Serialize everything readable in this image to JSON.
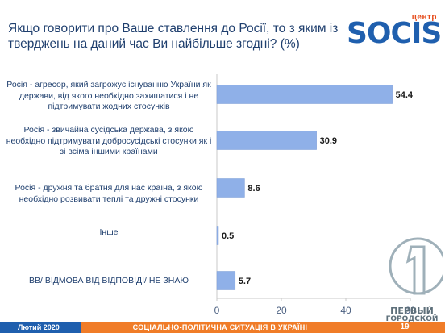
{
  "header": {
    "title": "Якщо говорити про Ваше ставлення до Росії, то з яким із тверджень на даний час Ви найбільше згодні? (%)"
  },
  "logo": {
    "small": "центр",
    "big": "SOCIS",
    "brand_color": "#1f5fae",
    "accent_color": "#e64a19"
  },
  "chart_data": {
    "type": "bar",
    "orientation": "horizontal",
    "categories": [
      "Росія - агресор, який загрожує існуванню України як держави, від якого необхідно захищатися і не підтримувати жодних стосунків",
      "Росія - звичайна сусідська держава, з якою необхідно підтримувати добросусідські стосунки як і зі всіма іншими країнами",
      "Росія - дружня та братня для нас країна, з якою необхідно розвивати теплі та дружні стосунки",
      "Інше",
      "ВВ/ ВІДМОВА ВІД ВІДПОВІДІ/ НЕ ЗНАЮ"
    ],
    "values": [
      54.4,
      30.9,
      8.6,
      0.5,
      5.7
    ],
    "value_labels": [
      "54.4",
      "30.9",
      "8.6",
      "0.5",
      "5.7"
    ],
    "xlim": [
      0,
      60
    ],
    "xticks": [
      "0",
      "20",
      "40",
      "60"
    ],
    "bar_color": "#8fb0e8",
    "grid": false
  },
  "footer": {
    "date": "Лютий 2020",
    "caption": "СОЦІАЛЬНО-ПОЛІТИЧНА СИТУАЦІЯ В УКРАЇНІ",
    "page": "19",
    "bar_color": "#f07c28",
    "date_box_color": "#1f5fae"
  },
  "watermark": {
    "line1": "ПЕРВЫЙ",
    "line2": "ГОРОДСКОЙ",
    "icon": "first-city-logo-icon"
  }
}
